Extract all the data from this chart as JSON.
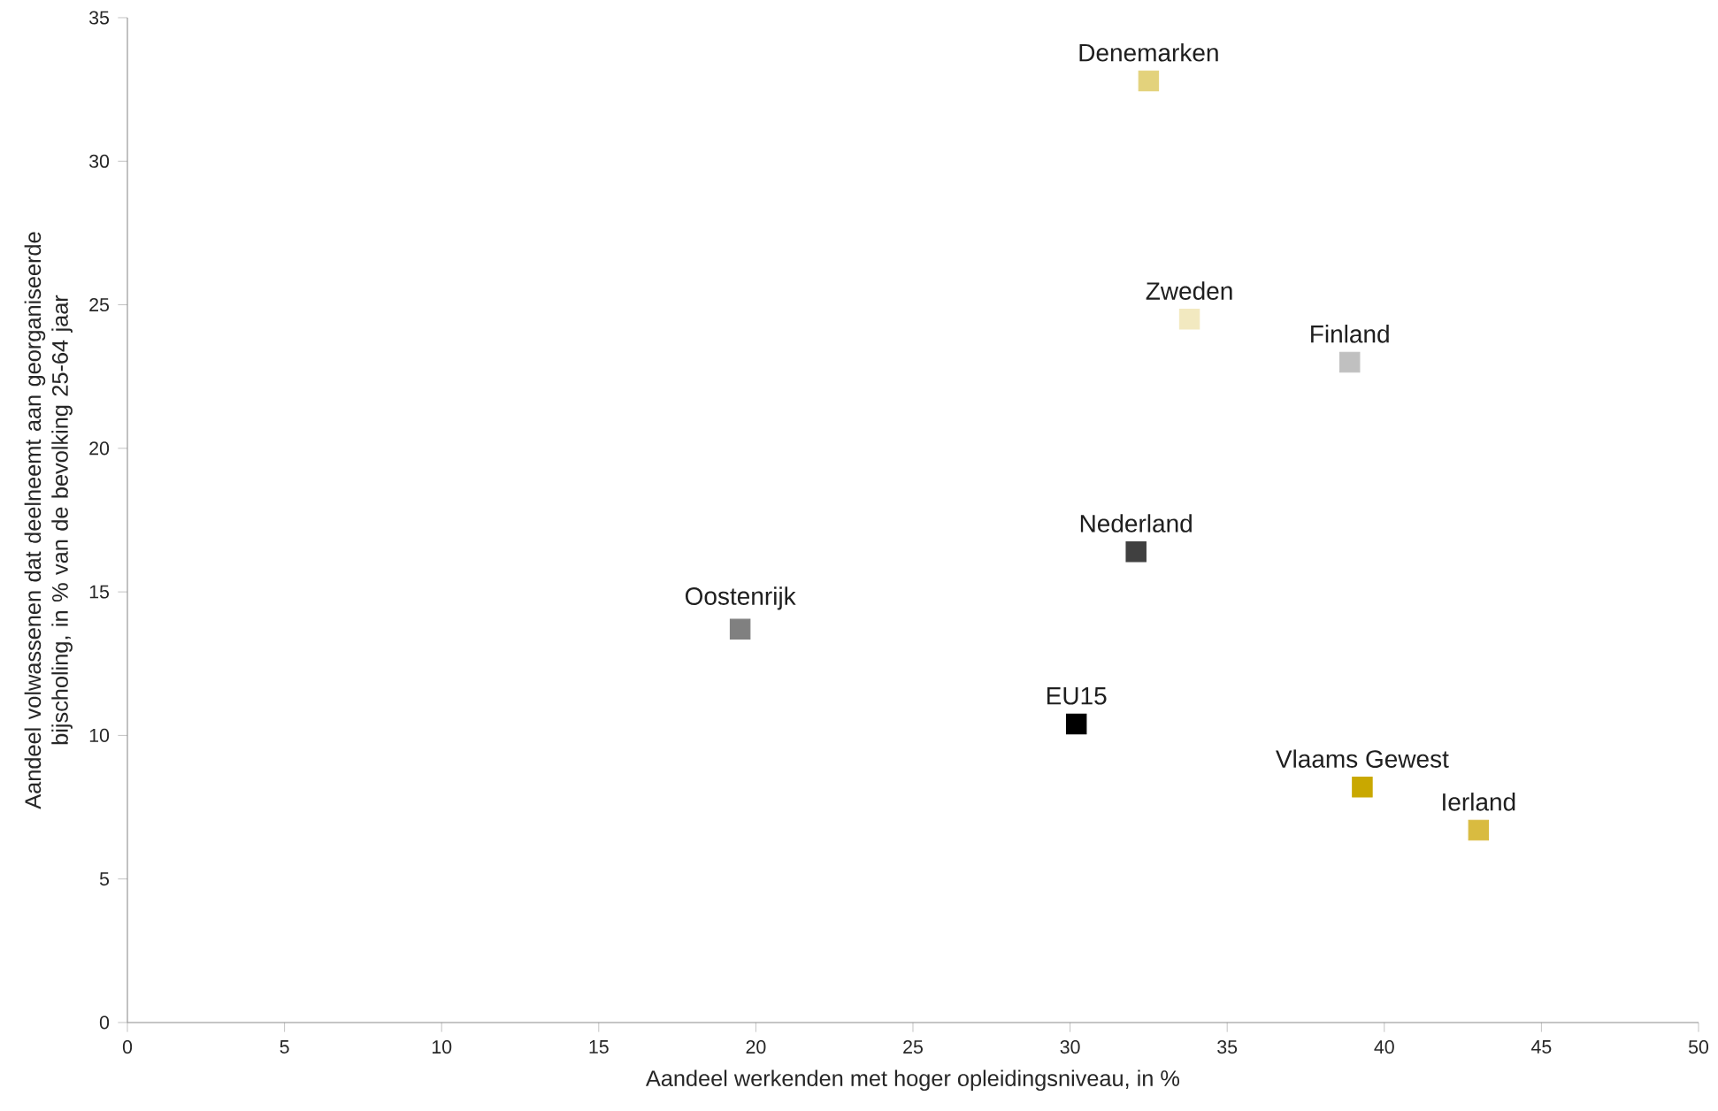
{
  "chart_data": {
    "type": "scatter",
    "marker": "square",
    "xlabel": "Aandeel werkenden met hoger opleidingsniveau, in %",
    "ylabel": "Aandeel volwassenen dat deelneemt aan georganiseerde bijscholing, in % van de bevolking 25-64 jaar",
    "xlim": [
      0,
      50
    ],
    "ylim": [
      0,
      35
    ],
    "xticks": [
      0,
      5,
      10,
      15,
      20,
      25,
      30,
      35,
      40,
      45,
      50
    ],
    "yticks": [
      0,
      5,
      10,
      15,
      20,
      25,
      30,
      35
    ],
    "series": [
      {
        "name": "Denemarken",
        "color": "#e3d27c",
        "x": [
          32.5
        ],
        "values": [
          32.8
        ]
      },
      {
        "name": "Zweden",
        "color": "#f2e9c0",
        "x": [
          33.8
        ],
        "values": [
          24.5
        ]
      },
      {
        "name": "Finland",
        "color": "#c0c0c0",
        "x": [
          38.9
        ],
        "values": [
          23.0
        ]
      },
      {
        "name": "Nederland",
        "color": "#404040",
        "x": [
          32.1
        ],
        "values": [
          16.4
        ]
      },
      {
        "name": "Oostenrijk",
        "color": "#808080",
        "x": [
          19.5
        ],
        "values": [
          13.7
        ]
      },
      {
        "name": "EU15",
        "color": "#000000",
        "x": [
          30.2
        ],
        "values": [
          10.4
        ]
      },
      {
        "name": "Vlaams Gewest",
        "color": "#c9a800",
        "x": [
          39.3
        ],
        "values": [
          8.2
        ]
      },
      {
        "name": "Ierland",
        "color": "#d9bb40",
        "x": [
          43.0
        ],
        "values": [
          6.7
        ]
      }
    ]
  }
}
